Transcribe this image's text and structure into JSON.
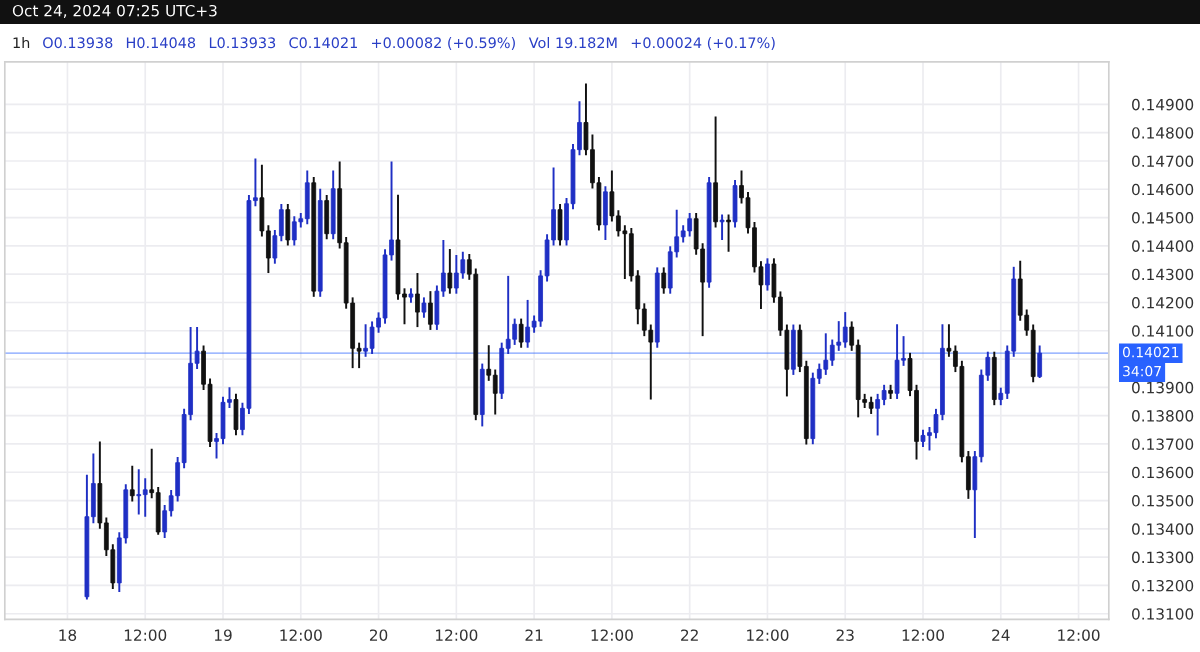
{
  "chart_data": {
    "type": "candlestick",
    "x": [
      "2024-10-18T03:00",
      "2024-10-18T04:00",
      "2024-10-18T05:00",
      "2024-10-18T06:00",
      "2024-10-18T07:00",
      "2024-10-18T08:00",
      "2024-10-18T09:00",
      "2024-10-18T10:00",
      "2024-10-18T11:00",
      "2024-10-18T12:00",
      "2024-10-18T13:00",
      "2024-10-18T14:00",
      "2024-10-18T15:00",
      "2024-10-18T16:00",
      "2024-10-18T17:00",
      "2024-10-18T18:00",
      "2024-10-18T19:00",
      "2024-10-18T20:00",
      "2024-10-18T21:00",
      "2024-10-18T22:00",
      "2024-10-18T23:00",
      "2024-10-19T00:00",
      "2024-10-19T01:00",
      "2024-10-19T02:00",
      "2024-10-19T03:00",
      "2024-10-19T04:00",
      "2024-10-19T05:00",
      "2024-10-19T06:00",
      "2024-10-19T07:00",
      "2024-10-19T08:00",
      "2024-10-19T09:00",
      "2024-10-19T10:00",
      "2024-10-19T11:00",
      "2024-10-19T12:00",
      "2024-10-19T13:00",
      "2024-10-19T14:00",
      "2024-10-19T15:00",
      "2024-10-19T16:00",
      "2024-10-19T17:00",
      "2024-10-19T18:00",
      "2024-10-19T19:00",
      "2024-10-19T20:00",
      "2024-10-19T21:00",
      "2024-10-19T22:00",
      "2024-10-19T23:00",
      "2024-10-20T00:00",
      "2024-10-20T01:00",
      "2024-10-20T02:00",
      "2024-10-20T03:00",
      "2024-10-20T04:00",
      "2024-10-20T05:00",
      "2024-10-20T06:00",
      "2024-10-20T07:00",
      "2024-10-20T08:00",
      "2024-10-20T09:00",
      "2024-10-20T10:00",
      "2024-10-20T11:00",
      "2024-10-20T12:00",
      "2024-10-20T13:00",
      "2024-10-20T14:00",
      "2024-10-20T15:00",
      "2024-10-20T16:00",
      "2024-10-20T17:00",
      "2024-10-20T18:00",
      "2024-10-20T19:00",
      "2024-10-20T20:00",
      "2024-10-20T21:00",
      "2024-10-20T22:00",
      "2024-10-20T23:00",
      "2024-10-21T00:00",
      "2024-10-21T01:00",
      "2024-10-21T02:00",
      "2024-10-21T03:00",
      "2024-10-21T04:00",
      "2024-10-21T05:00",
      "2024-10-21T06:00",
      "2024-10-21T07:00",
      "2024-10-21T08:00",
      "2024-10-21T09:00",
      "2024-10-21T10:00",
      "2024-10-21T11:00",
      "2024-10-21T12:00",
      "2024-10-21T13:00",
      "2024-10-21T14:00",
      "2024-10-21T15:00",
      "2024-10-21T16:00",
      "2024-10-21T17:00",
      "2024-10-21T18:00",
      "2024-10-21T19:00",
      "2024-10-21T20:00",
      "2024-10-21T21:00",
      "2024-10-21T22:00",
      "2024-10-21T23:00",
      "2024-10-22T00:00",
      "2024-10-22T01:00",
      "2024-10-22T02:00",
      "2024-10-22T03:00",
      "2024-10-22T04:00",
      "2024-10-22T05:00",
      "2024-10-22T06:00",
      "2024-10-22T07:00",
      "2024-10-22T08:00",
      "2024-10-22T09:00",
      "2024-10-22T10:00",
      "2024-10-22T11:00",
      "2024-10-22T12:00",
      "2024-10-22T13:00",
      "2024-10-22T14:00",
      "2024-10-22T15:00",
      "2024-10-22T16:00",
      "2024-10-22T17:00",
      "2024-10-22T18:00",
      "2024-10-22T19:00",
      "2024-10-22T20:00",
      "2024-10-22T21:00",
      "2024-10-22T22:00",
      "2024-10-22T23:00",
      "2024-10-23T00:00",
      "2024-10-23T01:00",
      "2024-10-23T02:00",
      "2024-10-23T03:00",
      "2024-10-23T04:00",
      "2024-10-23T05:00",
      "2024-10-23T06:00",
      "2024-10-23T07:00",
      "2024-10-23T08:00",
      "2024-10-23T09:00",
      "2024-10-23T10:00",
      "2024-10-23T11:00",
      "2024-10-23T12:00",
      "2024-10-23T13:00",
      "2024-10-23T14:00",
      "2024-10-23T15:00",
      "2024-10-23T16:00",
      "2024-10-23T17:00",
      "2024-10-23T18:00",
      "2024-10-23T19:00",
      "2024-10-23T20:00",
      "2024-10-23T21:00",
      "2024-10-23T22:00",
      "2024-10-23T23:00",
      "2024-10-24T00:00",
      "2024-10-24T01:00",
      "2024-10-24T02:00",
      "2024-10-24T03:00",
      "2024-10-24T04:00",
      "2024-10-24T05:00",
      "2024-10-24T06:00"
    ],
    "ohlc": [
      [
        0.1316,
        0.13591,
        0.1315,
        0.13443
      ],
      [
        0.13443,
        0.13666,
        0.1342,
        0.1356
      ],
      [
        0.1356,
        0.13709,
        0.134,
        0.13421
      ],
      [
        0.13421,
        0.1344,
        0.13304,
        0.13326
      ],
      [
        0.13326,
        0.13346,
        0.13187,
        0.13209
      ],
      [
        0.13209,
        0.13388,
        0.13177,
        0.13368
      ],
      [
        0.13368,
        0.13558,
        0.13348,
        0.13538
      ],
      [
        0.13538,
        0.13623,
        0.13497,
        0.13517
      ],
      [
        0.13517,
        0.13611,
        0.13451,
        0.13521
      ],
      [
        0.13521,
        0.13579,
        0.13443,
        0.13538
      ],
      [
        0.13538,
        0.13683,
        0.13508,
        0.13528
      ],
      [
        0.13528,
        0.13548,
        0.13379,
        0.13389
      ],
      [
        0.13389,
        0.13484,
        0.13368,
        0.13464
      ],
      [
        0.13464,
        0.13537,
        0.13444,
        0.13517
      ],
      [
        0.13517,
        0.13654,
        0.13497,
        0.13634
      ],
      [
        0.13634,
        0.13824,
        0.13614,
        0.13804
      ],
      [
        0.13804,
        0.14113,
        0.13784,
        0.13985
      ],
      [
        0.13985,
        0.14113,
        0.13965,
        0.14028
      ],
      [
        0.14028,
        0.14048,
        0.13891,
        0.13911
      ],
      [
        0.13911,
        0.13931,
        0.13689,
        0.13709
      ],
      [
        0.13709,
        0.13739,
        0.13649,
        0.13719
      ],
      [
        0.13719,
        0.13867,
        0.13699,
        0.13847
      ],
      [
        0.13847,
        0.139,
        0.13827,
        0.13857
      ],
      [
        0.13857,
        0.13877,
        0.13731,
        0.13751
      ],
      [
        0.13751,
        0.13846,
        0.13731,
        0.13826
      ],
      [
        0.13826,
        0.1458,
        0.13806,
        0.1456
      ],
      [
        0.1456,
        0.14709,
        0.1454,
        0.1457
      ],
      [
        0.1457,
        0.14687,
        0.14433,
        0.14453
      ],
      [
        0.14453,
        0.14473,
        0.14304,
        0.14357
      ],
      [
        0.14357,
        0.14456,
        0.14337,
        0.14436
      ],
      [
        0.14436,
        0.14548,
        0.14416,
        0.14528
      ],
      [
        0.14528,
        0.14548,
        0.14401,
        0.14421
      ],
      [
        0.14421,
        0.14505,
        0.14401,
        0.14485
      ],
      [
        0.14485,
        0.14516,
        0.14465,
        0.14496
      ],
      [
        0.14496,
        0.14666,
        0.14476,
        0.14623
      ],
      [
        0.14623,
        0.14643,
        0.1422,
        0.1424
      ],
      [
        0.1424,
        0.14602,
        0.1422,
        0.1456
      ],
      [
        0.1456,
        0.1458,
        0.14423,
        0.14443
      ],
      [
        0.14443,
        0.14666,
        0.14423,
        0.14602
      ],
      [
        0.14602,
        0.14698,
        0.14391,
        0.14411
      ],
      [
        0.14411,
        0.14431,
        0.14178,
        0.14198
      ],
      [
        0.14198,
        0.14218,
        0.13968,
        0.14038
      ],
      [
        0.14038,
        0.14058,
        0.13968,
        0.14028
      ],
      [
        0.14028,
        0.14123,
        0.14008,
        0.14038
      ],
      [
        0.14038,
        0.14133,
        0.14018,
        0.14113
      ],
      [
        0.14113,
        0.14165,
        0.14093,
        0.14145
      ],
      [
        0.14145,
        0.14388,
        0.14125,
        0.14368
      ],
      [
        0.14368,
        0.14698,
        0.14348,
        0.14421
      ],
      [
        0.14421,
        0.14581,
        0.1421,
        0.1423
      ],
      [
        0.1423,
        0.1425,
        0.14123,
        0.14219
      ],
      [
        0.14219,
        0.1425,
        0.14199,
        0.1423
      ],
      [
        0.1423,
        0.14304,
        0.14113,
        0.14166
      ],
      [
        0.14166,
        0.14218,
        0.14146,
        0.14198
      ],
      [
        0.14198,
        0.1424,
        0.14103,
        0.14123
      ],
      [
        0.14123,
        0.1426,
        0.14103,
        0.1424
      ],
      [
        0.1424,
        0.14421,
        0.1422,
        0.14304
      ],
      [
        0.14304,
        0.14389,
        0.14231,
        0.14251
      ],
      [
        0.14251,
        0.14368,
        0.14231,
        0.14304
      ],
      [
        0.14304,
        0.14379,
        0.14284,
        0.14351
      ],
      [
        0.14351,
        0.14371,
        0.1428,
        0.143
      ],
      [
        0.143,
        0.1432,
        0.13784,
        0.13804
      ],
      [
        0.13804,
        0.13984,
        0.13762,
        0.13964
      ],
      [
        0.13964,
        0.14049,
        0.13923,
        0.13943
      ],
      [
        0.13943,
        0.13963,
        0.13804,
        0.13879
      ],
      [
        0.13879,
        0.14058,
        0.13859,
        0.14038
      ],
      [
        0.14038,
        0.14294,
        0.14018,
        0.1407
      ],
      [
        0.1407,
        0.14143,
        0.1405,
        0.14123
      ],
      [
        0.14123,
        0.14143,
        0.1404,
        0.1406
      ],
      [
        0.1406,
        0.14209,
        0.1404,
        0.14113
      ],
      [
        0.14113,
        0.14154,
        0.14093,
        0.14134
      ],
      [
        0.14134,
        0.14314,
        0.14114,
        0.14294
      ],
      [
        0.14294,
        0.14441,
        0.14274,
        0.14421
      ],
      [
        0.14421,
        0.14677,
        0.14401,
        0.14528
      ],
      [
        0.14528,
        0.14548,
        0.14401,
        0.14421
      ],
      [
        0.14421,
        0.14569,
        0.14401,
        0.14549
      ],
      [
        0.14549,
        0.1476,
        0.14529,
        0.1474
      ],
      [
        0.1474,
        0.14911,
        0.1472,
        0.14836
      ],
      [
        0.14836,
        0.14974,
        0.1472,
        0.1474
      ],
      [
        0.1474,
        0.14794,
        0.14603,
        0.14623
      ],
      [
        0.14623,
        0.14643,
        0.14454,
        0.14474
      ],
      [
        0.14474,
        0.14611,
        0.14421,
        0.14591
      ],
      [
        0.14591,
        0.14666,
        0.14486,
        0.14506
      ],
      [
        0.14506,
        0.14526,
        0.14433,
        0.14453
      ],
      [
        0.14453,
        0.14473,
        0.14283,
        0.14443
      ],
      [
        0.14443,
        0.14463,
        0.14274,
        0.14294
      ],
      [
        0.14294,
        0.14314,
        0.14123,
        0.14177
      ],
      [
        0.14177,
        0.14197,
        0.14081,
        0.14102
      ],
      [
        0.14102,
        0.14122,
        0.13857,
        0.1406
      ],
      [
        0.1406,
        0.14324,
        0.1404,
        0.14304
      ],
      [
        0.14304,
        0.14324,
        0.14231,
        0.14251
      ],
      [
        0.14251,
        0.14399,
        0.14231,
        0.14379
      ],
      [
        0.14379,
        0.14528,
        0.14359,
        0.14432
      ],
      [
        0.14432,
        0.14473,
        0.14412,
        0.14453
      ],
      [
        0.14453,
        0.14516,
        0.14433,
        0.14496
      ],
      [
        0.14496,
        0.14516,
        0.14369,
        0.14389
      ],
      [
        0.14389,
        0.14409,
        0.14081,
        0.14272
      ],
      [
        0.14272,
        0.14643,
        0.14252,
        0.14623
      ],
      [
        0.14623,
        0.14857,
        0.14465,
        0.14485
      ],
      [
        0.14485,
        0.14511,
        0.14421,
        0.14491
      ],
      [
        0.14491,
        0.14511,
        0.14379,
        0.14485
      ],
      [
        0.14485,
        0.14633,
        0.14465,
        0.14613
      ],
      [
        0.14613,
        0.14666,
        0.1455,
        0.1457
      ],
      [
        0.1457,
        0.1459,
        0.14444,
        0.14464
      ],
      [
        0.14464,
        0.14484,
        0.14306,
        0.14326
      ],
      [
        0.14326,
        0.14346,
        0.14177,
        0.14262
      ],
      [
        0.14262,
        0.14356,
        0.14242,
        0.14336
      ],
      [
        0.14336,
        0.14356,
        0.14199,
        0.14219
      ],
      [
        0.14219,
        0.14239,
        0.14082,
        0.14102
      ],
      [
        0.14102,
        0.14122,
        0.13868,
        0.13964
      ],
      [
        0.13964,
        0.14122,
        0.13944,
        0.14102
      ],
      [
        0.14102,
        0.14122,
        0.13954,
        0.13974
      ],
      [
        0.13974,
        0.13994,
        0.13698,
        0.13719
      ],
      [
        0.13719,
        0.13952,
        0.13699,
        0.13932
      ],
      [
        0.13932,
        0.13984,
        0.13912,
        0.13964
      ],
      [
        0.13964,
        0.14091,
        0.13944,
        0.13996
      ],
      [
        0.13996,
        0.14069,
        0.13976,
        0.14049
      ],
      [
        0.14049,
        0.14134,
        0.14029,
        0.1406
      ],
      [
        0.1406,
        0.14166,
        0.1404,
        0.14113
      ],
      [
        0.14113,
        0.14133,
        0.14029,
        0.14049
      ],
      [
        0.14049,
        0.14069,
        0.13794,
        0.13857
      ],
      [
        0.13857,
        0.13877,
        0.13827,
        0.13847
      ],
      [
        0.13847,
        0.13867,
        0.13806,
        0.13826
      ],
      [
        0.13826,
        0.13877,
        0.1373,
        0.13857
      ],
      [
        0.13857,
        0.13909,
        0.13837,
        0.13889
      ],
      [
        0.13889,
        0.13909,
        0.13859,
        0.13879
      ],
      [
        0.13879,
        0.14123,
        0.13859,
        0.13996
      ],
      [
        0.13996,
        0.14081,
        0.13976,
        0.14002
      ],
      [
        0.14002,
        0.14022,
        0.13869,
        0.13889
      ],
      [
        0.13889,
        0.13909,
        0.13645,
        0.13709
      ],
      [
        0.13709,
        0.1375,
        0.13689,
        0.1373
      ],
      [
        0.1373,
        0.1376,
        0.13677,
        0.1374
      ],
      [
        0.1374,
        0.13824,
        0.1372,
        0.13804
      ],
      [
        0.13804,
        0.14123,
        0.13784,
        0.14038
      ],
      [
        0.14038,
        0.14123,
        0.14008,
        0.14028
      ],
      [
        0.14028,
        0.14048,
        0.13954,
        0.13974
      ],
      [
        0.13974,
        0.13994,
        0.13635,
        0.13655
      ],
      [
        0.13655,
        0.13675,
        0.13506,
        0.13538
      ],
      [
        0.13538,
        0.13675,
        0.13368,
        0.13655
      ],
      [
        0.13655,
        0.13963,
        0.13635,
        0.13943
      ],
      [
        0.13943,
        0.14026,
        0.13923,
        0.14006
      ],
      [
        0.14006,
        0.14026,
        0.13837,
        0.13857
      ],
      [
        0.13857,
        0.13899,
        0.13837,
        0.13879
      ],
      [
        0.13879,
        0.14048,
        0.13859,
        0.14028
      ],
      [
        0.14028,
        0.14326,
        0.14008,
        0.14283
      ],
      [
        0.14283,
        0.14347,
        0.14135,
        0.14155
      ],
      [
        0.14155,
        0.14175,
        0.14082,
        0.14102
      ],
      [
        0.14102,
        0.14122,
        0.13918,
        0.13938
      ],
      [
        0.13938,
        0.14048,
        0.13933,
        0.14021
      ]
    ],
    "colors": [
      "#1f2fc4",
      "#1f2fc4",
      "#111111",
      "#111111",
      "#111111",
      "#1f2fc4",
      "#1f2fc4",
      "#111111",
      "#1f2fc4",
      "#1f2fc4",
      "#111111",
      "#111111",
      "#1f2fc4",
      "#1f2fc4",
      "#1f2fc4",
      "#1f2fc4",
      "#1f2fc4",
      "#1f2fc4",
      "#111111",
      "#111111",
      "#1f2fc4",
      "#1f2fc4",
      "#1f2fc4",
      "#111111",
      "#1f2fc4",
      "#1f2fc4",
      "#1f2fc4",
      "#111111",
      "#111111",
      "#1f2fc4",
      "#1f2fc4",
      "#111111",
      "#1f2fc4",
      "#1f2fc4",
      "#1f2fc4",
      "#111111",
      "#1f2fc4",
      "#111111",
      "#1f2fc4",
      "#111111",
      "#111111",
      "#111111",
      "#111111",
      "#1f2fc4",
      "#1f2fc4",
      "#1f2fc4",
      "#1f2fc4",
      "#1f2fc4",
      "#111111",
      "#111111",
      "#1f2fc4",
      "#111111",
      "#1f2fc4",
      "#111111",
      "#1f2fc4",
      "#1f2fc4",
      "#111111",
      "#1f2fc4",
      "#1f2fc4",
      "#111111",
      "#111111",
      "#1f2fc4",
      "#111111",
      "#111111",
      "#1f2fc4",
      "#1f2fc4",
      "#1f2fc4",
      "#111111",
      "#1f2fc4",
      "#1f2fc4",
      "#1f2fc4",
      "#1f2fc4",
      "#1f2fc4",
      "#111111",
      "#1f2fc4",
      "#1f2fc4",
      "#1f2fc4",
      "#111111",
      "#111111",
      "#111111",
      "#1f2fc4",
      "#111111",
      "#111111",
      "#111111",
      "#111111",
      "#111111",
      "#111111",
      "#111111",
      "#1f2fc4",
      "#111111",
      "#1f2fc4",
      "#1f2fc4",
      "#1f2fc4",
      "#1f2fc4",
      "#111111",
      "#111111",
      "#1f2fc4",
      "#111111",
      "#1f2fc4",
      "#111111",
      "#1f2fc4",
      "#111111",
      "#111111",
      "#111111",
      "#111111",
      "#1f2fc4",
      "#111111",
      "#111111",
      "#111111",
      "#1f2fc4",
      "#111111",
      "#111111",
      "#1f2fc4",
      "#1f2fc4",
      "#1f2fc4",
      "#1f2fc4",
      "#1f2fc4",
      "#1f2fc4",
      "#111111",
      "#111111",
      "#111111",
      "#111111",
      "#1f2fc4",
      "#1f2fc4",
      "#111111",
      "#1f2fc4",
      "#1f2fc4",
      "#111111",
      "#111111",
      "#1f2fc4",
      "#1f2fc4",
      "#1f2fc4",
      "#1f2fc4",
      "#111111",
      "#111111",
      "#111111",
      "#111111",
      "#1f2fc4",
      "#1f2fc4",
      "#1f2fc4",
      "#111111",
      "#1f2fc4",
      "#1f2fc4",
      "#1f2fc4",
      "#111111",
      "#111111",
      "#111111",
      "#1f2fc4"
    ],
    "xlim": [
      "2024-10-17T14:20",
      "2024-10-24T16:40"
    ],
    "xticks": [
      {
        "value": "2024-10-18T00:00",
        "label": "18"
      },
      {
        "value": "2024-10-18T12:00",
        "label": "12:00"
      },
      {
        "value": "2024-10-19T00:00",
        "label": "19"
      },
      {
        "value": "2024-10-19T12:00",
        "label": "12:00"
      },
      {
        "value": "2024-10-20T00:00",
        "label": "20"
      },
      {
        "value": "2024-10-20T12:00",
        "label": "12:00"
      },
      {
        "value": "2024-10-21T00:00",
        "label": "21"
      },
      {
        "value": "2024-10-21T12:00",
        "label": "12:00"
      },
      {
        "value": "2024-10-22T00:00",
        "label": "22"
      },
      {
        "value": "2024-10-22T12:00",
        "label": "12:00"
      },
      {
        "value": "2024-10-23T00:00",
        "label": "23"
      },
      {
        "value": "2024-10-23T12:00",
        "label": "12:00"
      },
      {
        "value": "2024-10-24T00:00",
        "label": "24"
      },
      {
        "value": "2024-10-24T12:00",
        "label": "12:00"
      }
    ],
    "ylim": [
      0.1308,
      0.1505
    ],
    "yticks": [
      {
        "value": 0.131,
        "label": "0.13100"
      },
      {
        "value": 0.132,
        "label": "0.13200"
      },
      {
        "value": 0.133,
        "label": "0.13300"
      },
      {
        "value": 0.134,
        "label": "0.13400"
      },
      {
        "value": 0.135,
        "label": "0.13500"
      },
      {
        "value": 0.136,
        "label": "0.13600"
      },
      {
        "value": 0.137,
        "label": "0.13700"
      },
      {
        "value": 0.138,
        "label": "0.13800"
      },
      {
        "value": 0.139,
        "label": "0.13900"
      },
      {
        "value": 0.14,
        "label": null
      },
      {
        "value": 0.141,
        "label": "0.14100"
      },
      {
        "value": 0.142,
        "label": "0.14200"
      },
      {
        "value": 0.143,
        "label": "0.14300"
      },
      {
        "value": 0.144,
        "label": "0.14400"
      },
      {
        "value": 0.145,
        "label": "0.14500"
      },
      {
        "value": 0.146,
        "label": "0.14600"
      },
      {
        "value": 0.147,
        "label": "0.14700"
      },
      {
        "value": 0.148,
        "label": "0.14800"
      },
      {
        "value": 0.149,
        "label": "0.14900"
      }
    ],
    "grid": true,
    "ref_lines": [
      {
        "axis": "y",
        "value": 0.14021,
        "label": "0.14021",
        "color": "#2962ff"
      }
    ],
    "annotations": [
      "Oct 24, 2024 07:25 UTC+3",
      "1h",
      "O0.13938",
      "H0.14048",
      "L0.13933",
      "C0.14021",
      "+0.00082 (+0.59%)",
      "Vol 19.182M",
      "+0.00024 (+0.17%)",
      "34:07"
    ]
  }
}
